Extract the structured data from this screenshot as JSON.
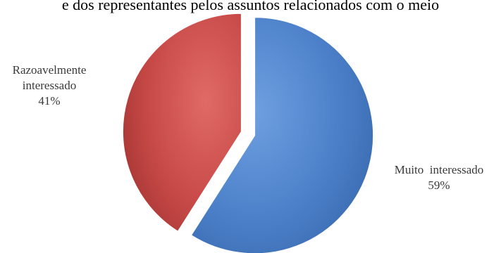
{
  "title": "e dos representantes pelos assuntos relacionados com o meio",
  "chart_data": {
    "type": "pie",
    "title": "e dos representantes pelos assuntos relacionados com o meio",
    "slices": [
      {
        "label": "Muito interessado",
        "value": 59,
        "value_label": "59%",
        "color": "#4a7fc8"
      },
      {
        "label": "Razoavelmente interessado",
        "value": 41,
        "value_label": "41%",
        "color": "#c84a48"
      }
    ],
    "exploded": true,
    "legend": "none"
  },
  "labels": {
    "razoavelmente": {
      "line1": "Razoavelmente",
      "line2": "interessado",
      "pct": "41%"
    },
    "muito": {
      "line1": "Muito  interessado",
      "pct": "59%"
    }
  }
}
